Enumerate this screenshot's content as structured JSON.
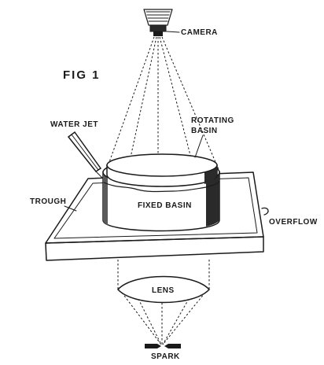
{
  "figure": {
    "title": "FIG 1",
    "labels": {
      "camera": "CAMERA",
      "water_jet": "WATER JET",
      "rotating_basin_line1": "ROTATING",
      "rotating_basin_line2": "BASIN",
      "trough": "TROUGH",
      "fixed_basin": "FIXED BASIN",
      "overflow": "OVERFLOW",
      "lens": "LENS",
      "spark": "SPARK"
    }
  }
}
